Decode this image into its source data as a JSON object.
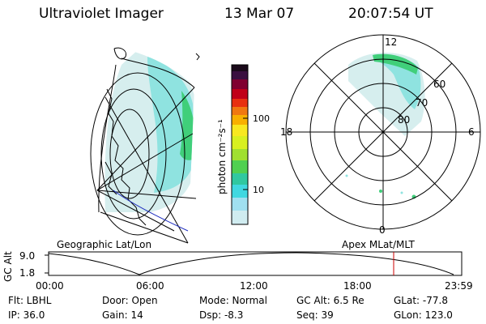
{
  "header": {
    "instrument": "Ultraviolet Imager",
    "date": "13 Mar 07",
    "time": "20:07:54 UT"
  },
  "colorbar": {
    "unit_label": "photon cm⁻²s⁻¹",
    "tick_labels": [
      "100",
      "10"
    ],
    "colors": [
      "#1a0a1a",
      "#3a1040",
      "#800030",
      "#c00018",
      "#e83010",
      "#f07810",
      "#f8b000",
      "#f8e820",
      "#d8f020",
      "#a0e030",
      "#50d050",
      "#30c8a0",
      "#40d8e0",
      "#a0e0f0",
      "#d0ecf0"
    ]
  },
  "left_panel": {
    "label": "Geographic Lat/Lon"
  },
  "right_panel": {
    "label": "Apex MLat/MLT",
    "mlt_labels": {
      "top": "12",
      "left": "18",
      "right": "6",
      "bottom": "0"
    },
    "lat_labels": [
      "60",
      "70",
      "80"
    ]
  },
  "timeline": {
    "ylabel": "GC Alt",
    "y_ticks": [
      "9.0",
      "1.8"
    ],
    "x_ticks": [
      "00:00",
      "06:00",
      "12:00",
      "18:00",
      "23:59"
    ],
    "current_marker_color": "#cc0000"
  },
  "info": {
    "filter": "Flt: LBHL",
    "ip": "IP: 36.0",
    "door": "Door: Open",
    "gain": "Gain: 14",
    "mode": "Mode: Normal",
    "dsp": "Dsp:   -8.3",
    "gc_alt": "GC Alt: 6.5 Re",
    "seq": "Seq: 39",
    "glat": "GLat:  -77.8",
    "glon": "GLon: 123.0"
  },
  "accent_colors": {
    "aurora_cyan": "#7fe0e0",
    "aurora_green": "#40d070",
    "coast_blue": "#2030c0"
  }
}
